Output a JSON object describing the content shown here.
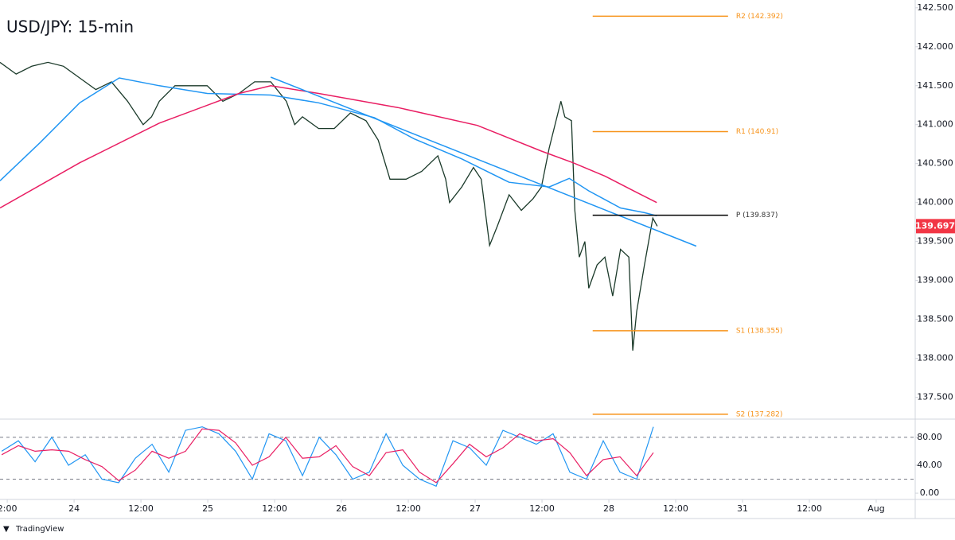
{
  "chart_data": [
    {
      "type": "line",
      "title": "USD/JPY: 15-min",
      "xlim": [
        10.7,
        175
      ],
      "ylim": [
        137.22,
        142.6
      ],
      "xticks": [
        {
          "value": 12,
          "label": "2:00"
        },
        24,
        {
          "value": 36,
          "label": "12:00"
        },
        {
          "value": 48,
          "label": "25"
        },
        {
          "value": 60,
          "label": "12:00"
        },
        {
          "value": 72,
          "label": "26"
        },
        {
          "value": 84,
          "label": "12:00"
        },
        {
          "value": 96,
          "label": "27"
        },
        {
          "value": 108,
          "label": "12:00"
        },
        {
          "value": 120,
          "label": "28"
        },
        {
          "value": 132,
          "label": "12:00"
        },
        {
          "value": 144,
          "label": "31"
        },
        {
          "value": 156,
          "label": "12:00"
        },
        {
          "value": 168,
          "label": "Aug"
        }
      ],
      "yticks": [
        {
          "value": 142.5,
          "label": "142.500"
        },
        {
          "value": 142,
          "label": "142.000"
        },
        {
          "value": 141.5,
          "label": "141.500"
        },
        {
          "value": 141,
          "label": "141.000"
        },
        {
          "value": 140.5,
          "label": "140.500"
        },
        {
          "value": 140,
          "label": "140.000"
        },
        {
          "value": 139.5,
          "label": "139.500"
        },
        {
          "value": 139,
          "label": "139.000"
        },
        {
          "value": 138.5,
          "label": "138.500"
        },
        {
          "value": 138,
          "label": "138.000"
        },
        {
          "value": 137.5,
          "label": "137.500"
        }
      ],
      "series": [
        {
          "color": "#1b3a2a",
          "x": [
            10.7,
            13.6,
            16.4,
            19.3,
            22.1,
            25,
            27.9,
            30.7,
            33.6,
            36.4,
            37.9,
            39.3,
            42.1,
            45,
            47.9,
            50.7,
            53.6,
            56.4,
            59.3,
            62.1,
            63.6,
            65,
            67.9,
            70.7,
            73.6,
            76.4,
            78.6,
            80.7,
            83.6,
            86.4,
            89.3,
            90.7,
            91.4,
            93.6,
            95.7,
            97.1,
            98.6,
            100,
            102.1,
            104.3,
            106.4,
            107.9,
            109.3,
            110.7,
            111.4,
            112.1,
            113.3,
            113.9,
            114.7,
            115.7,
            116.4,
            117.9,
            119.3,
            120.7,
            122.1,
            123.6,
            124.3,
            125,
            126.4,
            127.9,
            128.7
          ],
          "values": [
            141.8,
            141.65,
            141.75,
            141.8,
            141.75,
            141.6,
            141.45,
            141.55,
            141.3,
            141.0,
            141.1,
            141.3,
            141.5,
            141.5,
            141.5,
            141.3,
            141.4,
            141.55,
            141.55,
            141.3,
            141.0,
            141.1,
            140.95,
            140.95,
            141.15,
            141.05,
            140.8,
            140.3,
            140.3,
            140.4,
            140.6,
            140.3,
            140.0,
            140.2,
            140.45,
            140.3,
            139.45,
            139.7,
            140.1,
            139.9,
            140.05,
            140.2,
            140.7,
            141.1,
            141.3,
            141.1,
            141.05,
            139.9,
            139.3,
            139.5,
            138.9,
            139.2,
            139.3,
            138.8,
            139.4,
            139.3,
            138.1,
            138.6,
            139.2,
            139.8,
            139.697
          ]
        },
        {
          "color": "#2196f3",
          "x": [
            10.7,
            17.9,
            25,
            32.1,
            39.3,
            47.9,
            59.3,
            67.9,
            77.9,
            85,
            93.6,
            102.1,
            109.3,
            112.9,
            116.4,
            122.1,
            126.4,
            128.6
          ],
          "values": [
            140.28,
            140.77,
            141.28,
            141.6,
            141.5,
            141.4,
            141.38,
            141.28,
            141.09,
            140.82,
            140.56,
            140.26,
            140.2,
            140.31,
            140.15,
            139.93,
            139.87,
            139.83
          ]
        },
        {
          "color": "#e91e63",
          "x": [
            10.7,
            25,
            39.3,
            53.6,
            59.3,
            67.9,
            82.1,
            96.4,
            107.9,
            113.6,
            119.3,
            125,
            128.6
          ],
          "values": [
            139.93,
            140.51,
            141.02,
            141.4,
            141.5,
            141.4,
            141.22,
            140.99,
            140.66,
            140.51,
            140.34,
            140.13,
            140.0
          ]
        },
        {
          "color": "#2196f3",
          "x": [
            59.3,
            135.7
          ],
          "values": [
            141.61,
            139.44
          ]
        }
      ],
      "levels": [
        {
          "label": "R2 (142.392)",
          "value": 142.392
        },
        {
          "label": "R1 (140.91)",
          "value": 140.91
        },
        {
          "label": "P (139.837)",
          "value": 139.837
        },
        {
          "label": "S1 (138.355)",
          "value": 138.355
        },
        {
          "label": "S2 (137.282)",
          "value": 137.282
        }
      ],
      "levels_x": [
        117.1,
        141.4
      ],
      "last_price": 139.697
    },
    {
      "type": "line",
      "ylim": [
        -9,
        106
      ],
      "yticks": [
        {
          "value": 80,
          "label": "80.00"
        },
        {
          "value": 40,
          "label": "40.00"
        },
        {
          "value": 0,
          "label": "0.00"
        }
      ],
      "bands": [
        80,
        20
      ],
      "x": [
        11,
        14,
        17,
        20,
        23,
        26,
        29,
        32,
        35,
        38,
        41,
        44,
        47,
        50,
        53,
        56,
        59,
        62,
        65,
        68,
        71,
        74,
        77,
        80,
        83,
        86,
        89,
        92,
        95,
        98,
        101,
        104,
        107,
        110,
        113,
        116,
        119,
        122,
        125,
        128
      ],
      "series": [
        {
          "color": "#2196f3",
          "values": [
            60,
            75,
            45,
            80,
            40,
            55,
            20,
            15,
            50,
            70,
            30,
            90,
            95,
            85,
            60,
            20,
            85,
            75,
            25,
            80,
            55,
            20,
            30,
            85,
            40,
            20,
            10,
            75,
            65,
            40,
            90,
            80,
            70,
            85,
            30,
            20,
            75,
            30,
            20,
            95
          ]
        },
        {
          "color": "#e91e63",
          "values": [
            55,
            68,
            60,
            62,
            60,
            48,
            38,
            18,
            33,
            60,
            50,
            60,
            92,
            90,
            72,
            40,
            52,
            80,
            50,
            52,
            68,
            38,
            25,
            58,
            62,
            30,
            15,
            42,
            70,
            52,
            65,
            85,
            75,
            78,
            58,
            25,
            48,
            52,
            25,
            58
          ]
        }
      ]
    }
  ],
  "footer": "TradingView"
}
